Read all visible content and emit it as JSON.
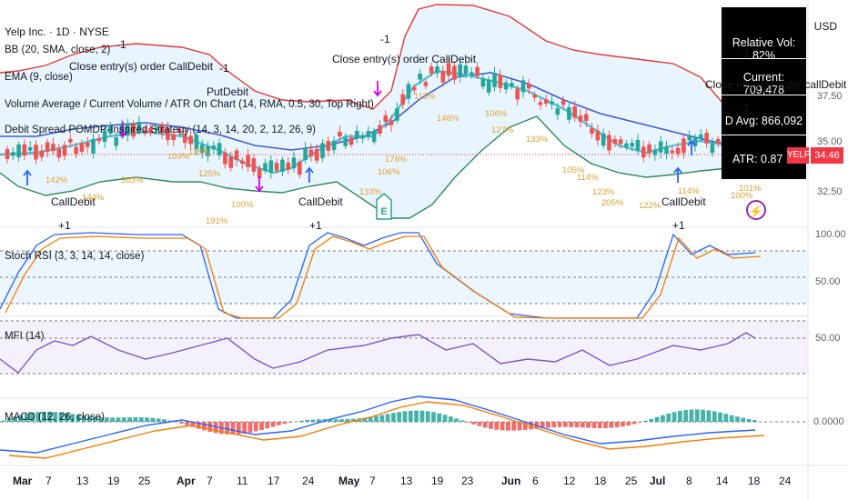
{
  "header": {
    "title": "Yelp Inc. · 1D · NYSE",
    "currency": "USD"
  },
  "indicators": [
    {
      "id": "bb",
      "label": "BB (20, SMA, close, 2)"
    },
    {
      "id": "ema",
      "label": "EMA (9, close)"
    },
    {
      "id": "vol",
      "label": "Volume Average / Current Volume / ATR On Chart (14, RMA, 0.5, 30, Top Right)"
    },
    {
      "id": "strategy",
      "label": "Debit Spread POMDP-Inspired Strategy (14, 3, 14, 20, 2, 12, 26, 9)"
    }
  ],
  "panes": {
    "stoch": {
      "label": "Stoch RSI (3, 3, 14, 14, close)",
      "ticks": [
        "100.00",
        "50.00"
      ]
    },
    "mfi": {
      "label": "MFI (14)",
      "ticks": [
        "50.00"
      ]
    },
    "macd": {
      "label": "MACD (12, 26, close)",
      "ticks": [
        "0.0000"
      ]
    }
  },
  "price_axis": {
    "ticks": [
      "37.50",
      "35.00",
      "32.50"
    ]
  },
  "last_price": {
    "symbol": "YELP",
    "value": "34.46"
  },
  "info_panel": {
    "relative_vol": "Relative Vol: 82%",
    "current": "Current: 709,478",
    "d_avg": "D Avg: 866,092",
    "atr": "ATR: 0.87"
  },
  "x_axis": [
    {
      "label": "Mar",
      "month": true
    },
    {
      "label": "7"
    },
    {
      "label": "13"
    },
    {
      "label": "19"
    },
    {
      "label": "25"
    },
    {
      "label": "Apr",
      "month": true
    },
    {
      "label": "7"
    },
    {
      "label": "11"
    },
    {
      "label": "17"
    },
    {
      "label": "24"
    },
    {
      "label": "May",
      "month": true
    },
    {
      "label": "7"
    },
    {
      "label": "13"
    },
    {
      "label": "19"
    },
    {
      "label": "23"
    },
    {
      "label": "Jun",
      "month": true
    },
    {
      "label": "6"
    },
    {
      "label": "12"
    },
    {
      "label": "18"
    },
    {
      "label": "25"
    },
    {
      "label": "Jul",
      "month": true
    },
    {
      "label": "8"
    },
    {
      "label": "14"
    },
    {
      "label": "18"
    },
    {
      "label": "24"
    }
  ],
  "trades": [
    {
      "text": "Close entry(s) order CallDebit"
    },
    {
      "text": "-1"
    },
    {
      "text": "PutDebit"
    },
    {
      "text": "-1"
    },
    {
      "text": "Close entry(s) order CallDebit"
    },
    {
      "text": "-1"
    },
    {
      "text": "CallDebit"
    },
    {
      "text": "+1"
    },
    {
      "text": "CallDebit"
    },
    {
      "text": "+1"
    },
    {
      "text": "CallDebit"
    },
    {
      "text": "+1"
    },
    {
      "text": "Close entry(s) order callDebit"
    },
    {
      "text": "-1"
    },
    {
      "text": "-1"
    }
  ],
  "pct_labels": [
    "142%",
    "144%",
    "303%",
    "109%",
    "118%",
    "125%",
    "100%",
    "191%",
    "176%",
    "106%",
    "133%",
    "115%",
    "146%",
    "106%",
    "127%",
    "133%",
    "105%",
    "114%",
    "123%",
    "205%",
    "122%",
    "114%",
    "100%",
    "101%"
  ],
  "colors": {
    "bb_upper": "#e53935",
    "bb_lower": "#2e8b57",
    "bb_basis": "#3f5bd6",
    "ema": "#56c2d6",
    "candle_up": "#26a69a",
    "candle_down": "#ef5350",
    "stoch_k": "#2962ff",
    "stoch_d": "#f57c00",
    "mfi": "#7e57c2",
    "macd": "#2962ff",
    "signal": "#f57c00"
  }
}
